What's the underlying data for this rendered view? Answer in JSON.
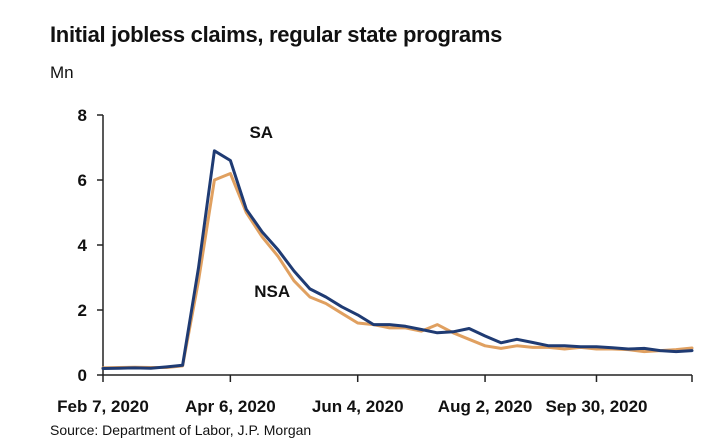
{
  "chart_data": {
    "type": "line",
    "title": "Initial jobless claims, regular state programs",
    "unit": "Mn",
    "source": "Source: Department of Labor, J.P. Morgan",
    "ylim": [
      0,
      8
    ],
    "yticks": [
      0,
      2,
      4,
      6,
      8
    ],
    "xlim": [
      0,
      37
    ],
    "xticks": [
      {
        "label": "Feb 7, 2020",
        "x": 0
      },
      {
        "label": "Apr 6, 2020",
        "x": 8
      },
      {
        "label": "Jun 4, 2020",
        "x": 16
      },
      {
        "label": "Aug 2, 2020",
        "x": 24
      },
      {
        "label": "Sep 30, 2020",
        "x": 31
      }
    ],
    "grid": false,
    "series": [
      {
        "name": "SA",
        "color": "#1f3b73",
        "x": [
          0,
          1,
          2,
          3,
          4,
          5,
          6,
          7,
          8,
          9,
          10,
          11,
          12,
          13,
          14,
          15,
          16,
          17,
          18,
          19,
          20,
          21,
          22,
          23,
          24,
          25,
          26,
          27,
          28,
          29,
          30,
          31,
          32,
          33,
          34,
          35,
          36,
          37
        ],
        "y": [
          0.2,
          0.21,
          0.22,
          0.21,
          0.25,
          0.3,
          3.3,
          6.9,
          6.6,
          5.1,
          4.4,
          3.85,
          3.2,
          2.65,
          2.4,
          2.1,
          1.85,
          1.55,
          1.55,
          1.5,
          1.4,
          1.3,
          1.33,
          1.43,
          1.2,
          0.99,
          1.1,
          1.0,
          0.9,
          0.9,
          0.87,
          0.87,
          0.84,
          0.8,
          0.82,
          0.75,
          0.72,
          0.75
        ]
      },
      {
        "name": "NSA",
        "color": "#e0a060",
        "x": [
          0,
          1,
          2,
          3,
          4,
          5,
          6,
          7,
          8,
          9,
          10,
          11,
          12,
          13,
          14,
          15,
          16,
          17,
          18,
          19,
          20,
          21,
          22,
          23,
          24,
          25,
          26,
          27,
          28,
          29,
          30,
          31,
          32,
          33,
          34,
          35,
          36,
          37
        ],
        "y": [
          0.22,
          0.23,
          0.24,
          0.23,
          0.23,
          0.28,
          2.9,
          6.0,
          6.2,
          5.0,
          4.25,
          3.65,
          2.9,
          2.4,
          2.2,
          1.9,
          1.6,
          1.55,
          1.45,
          1.45,
          1.35,
          1.55,
          1.3,
          1.1,
          0.9,
          0.82,
          0.9,
          0.85,
          0.85,
          0.8,
          0.85,
          0.8,
          0.8,
          0.78,
          0.72,
          0.75,
          0.78,
          0.83
        ]
      }
    ],
    "annotations": [
      {
        "text": "SA",
        "x": 9.2,
        "y": 7.3
      },
      {
        "text": "NSA",
        "x": 9.5,
        "y": 2.4
      }
    ]
  }
}
